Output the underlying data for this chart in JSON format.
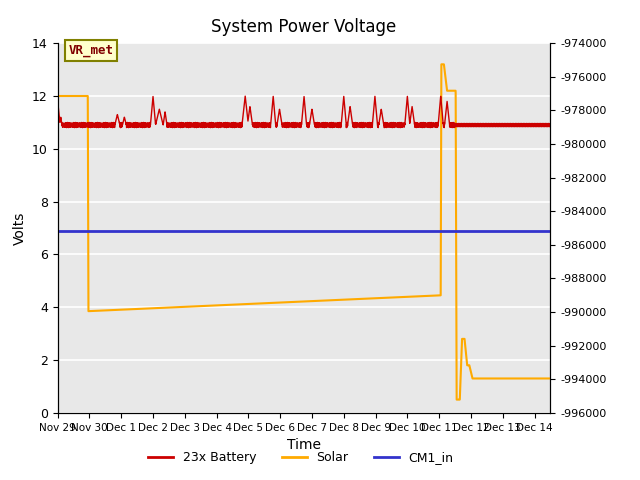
{
  "title": "System Power Voltage",
  "xlabel": "Time",
  "ylabel": "Volts",
  "xlim_days": [
    0,
    15.5
  ],
  "ylim_left": [
    0,
    14
  ],
  "ylim_right": [
    -996000,
    -974000
  ],
  "right_yticks": [
    -996000,
    -994000,
    -992000,
    -990000,
    -988000,
    -986000,
    -984000,
    -982000,
    -980000,
    -978000,
    -976000,
    -974000
  ],
  "yticks_left": [
    0,
    2,
    4,
    6,
    8,
    10,
    12,
    14
  ],
  "xtick_labels": [
    "Nov 29",
    "Nov 30",
    "Dec 1",
    "Dec 2",
    "Dec 3",
    "Dec 4",
    "Dec 5",
    "Dec 6",
    "Dec 7",
    "Dec 8",
    "Dec 9",
    "Dec 10",
    "Dec 11",
    "Dec 12",
    "Dec 13",
    "Dec 14"
  ],
  "xtick_positions": [
    0,
    1,
    2,
    3,
    4,
    5,
    6,
    7,
    8,
    9,
    10,
    11,
    12,
    13,
    14,
    15
  ],
  "background_color": "#e8e8e8",
  "grid_color": "#ffffff",
  "annotation_text": "VR_met",
  "annotation_fg": "#800000",
  "annotation_bg": "#ffffcc",
  "annotation_edge": "#808000",
  "cm1_in_value": 6.9,
  "cm1_in_color": "#3333cc",
  "battery_color": "#cc0000",
  "solar_color": "#ffaa00",
  "legend_battery": "23x Battery",
  "legend_solar": "Solar",
  "legend_cm1": "CM1_in",
  "solar_start_x": 0.0,
  "solar_start_y": 12.0,
  "solar_drop_x": 0.95,
  "solar_base_start": 3.85,
  "solar_base_end": 4.45,
  "solar_base_end_x": 12.05,
  "solar_spike_x": 12.05,
  "solar_spike_y": 13.2,
  "solar_drop2_x": 12.55,
  "solar_end_x": 15.5,
  "solar_end_y": 1.3
}
